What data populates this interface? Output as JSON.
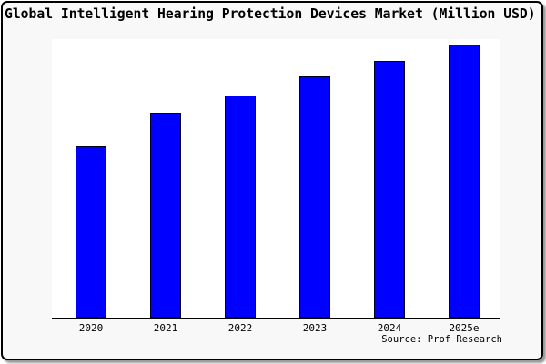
{
  "chart_data": {
    "type": "bar",
    "title": "Global Intelligent Hearing Protection Devices Market (Million USD)",
    "categories": [
      "2020",
      "2021",
      "2022",
      "2023",
      "2024",
      "2025e"
    ],
    "values": [
      189,
      225,
      244,
      265,
      282,
      300
    ],
    "value_note": "no y-axis or data labels shown; values are relative bar heights in pixels",
    "xlabel": "",
    "ylabel": "",
    "legend": false,
    "grid": false,
    "bar_color": "#0000ff",
    "bar_edge_color": "#000022",
    "figure_background": "#f8f8f8",
    "plot_background": "#ffffff",
    "source": "Source: Prof Research"
  }
}
